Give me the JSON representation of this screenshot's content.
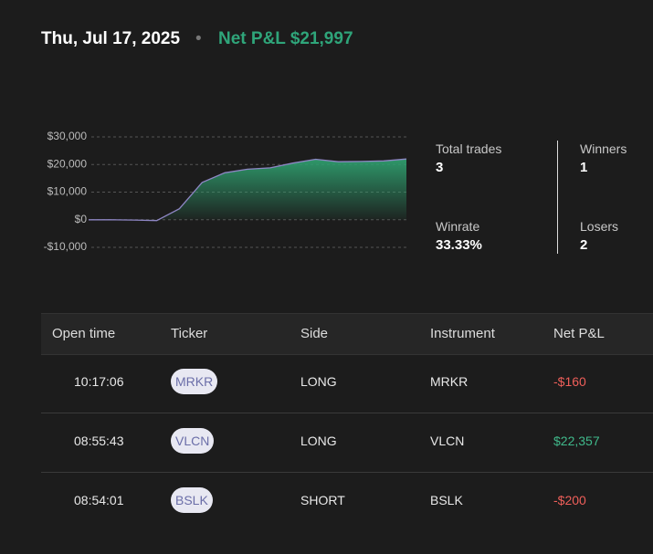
{
  "header": {
    "date": "Thu, Jul 17, 2025",
    "net_pnl": "Net P&L $21,997"
  },
  "chart_data": {
    "type": "area",
    "values": [
      0,
      0,
      -100,
      -300,
      4000,
      13500,
      17000,
      18300,
      18800,
      20500,
      21900,
      21000,
      21100,
      21300,
      22000
    ],
    "color": "#2f9e6e",
    "line_color": "#8e86c4",
    "ylim": [
      -10000,
      30000
    ],
    "yticks": [
      {
        "value": -10000,
        "label": "-$10,000"
      },
      {
        "value": 0,
        "label": "$0"
      },
      {
        "value": 10000,
        "label": "$10,000"
      },
      {
        "value": 20000,
        "label": "$20,000"
      },
      {
        "value": 30000,
        "label": "$30,000"
      }
    ],
    "grid": true
  },
  "stats": [
    {
      "label": "Total trades",
      "value": "3"
    },
    {
      "label": "Winners",
      "value": "1"
    },
    {
      "label": "Winrate",
      "value": "33.33%"
    },
    {
      "label": "Losers",
      "value": "2"
    }
  ],
  "table": {
    "columns": [
      "Open time",
      "Ticker",
      "Side",
      "Instrument",
      "Net P&L"
    ],
    "rows": [
      [
        "10:17:06",
        "MRKR",
        "LONG",
        "MRKR",
        "-$160"
      ],
      [
        "08:55:43",
        "VLCN",
        "LONG",
        "VLCN",
        "$22,357"
      ],
      [
        "08:54:01",
        "BSLK",
        "SHORT",
        "BSLK",
        "-$200"
      ]
    ]
  }
}
